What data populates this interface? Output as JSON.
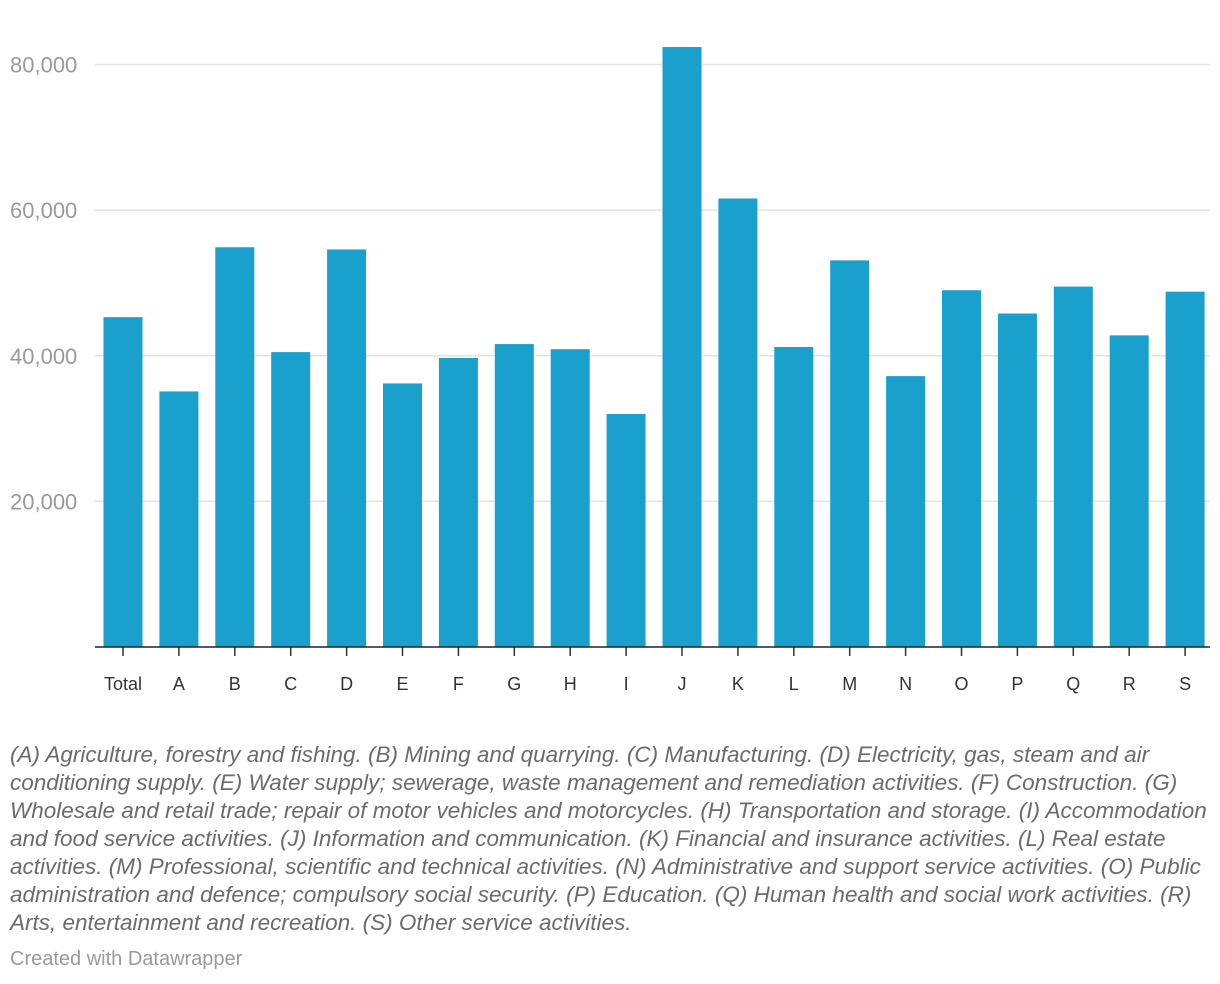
{
  "chart_data": {
    "type": "bar",
    "categories": [
      "Total",
      "A",
      "B",
      "C",
      "D",
      "E",
      "F",
      "G",
      "H",
      "I",
      "J",
      "K",
      "L",
      "M",
      "N",
      "O",
      "P",
      "Q",
      "R",
      "S"
    ],
    "values": [
      45300,
      35100,
      54900,
      40500,
      54600,
      36200,
      39700,
      41600,
      40900,
      32000,
      82400,
      61600,
      41200,
      53100,
      37200,
      49000,
      45800,
      49500,
      42800,
      48800
    ],
    "title": "",
    "xlabel": "",
    "ylabel": "",
    "ylim": [
      0,
      80000
    ],
    "yticks": [
      20000,
      40000,
      60000,
      80000
    ],
    "ytick_labels": [
      "20,000",
      "40,000",
      "60,000",
      "80,000"
    ],
    "grid": true,
    "bar_color": "#1aa0cc"
  },
  "footnote": "(A) Agriculture, forestry and fishing. (B) Mining and quarrying. (C) Manufacturing. (D) Electricity, gas, steam and air conditioning supply. (E) Water supply; sewerage, waste management and remediation activities. (F) Construction. (G) Wholesale and retail trade; repair of motor vehicles and motorcycles. (H) Transportation and storage. (I) Accommodation and food service activities. (J) Information and communication. (K) Financial and insurance activities. (L) Real estate activities. (M) Professional, scientific and technical activities. (N) Administrative and support service activities. (O) Public administration and defence; compulsory social security. (P) Education. (Q) Human health and social work activities. (R) Arts, entertainment and recreation. (S) Other service activities.",
  "credit": "Created with Datawrapper"
}
